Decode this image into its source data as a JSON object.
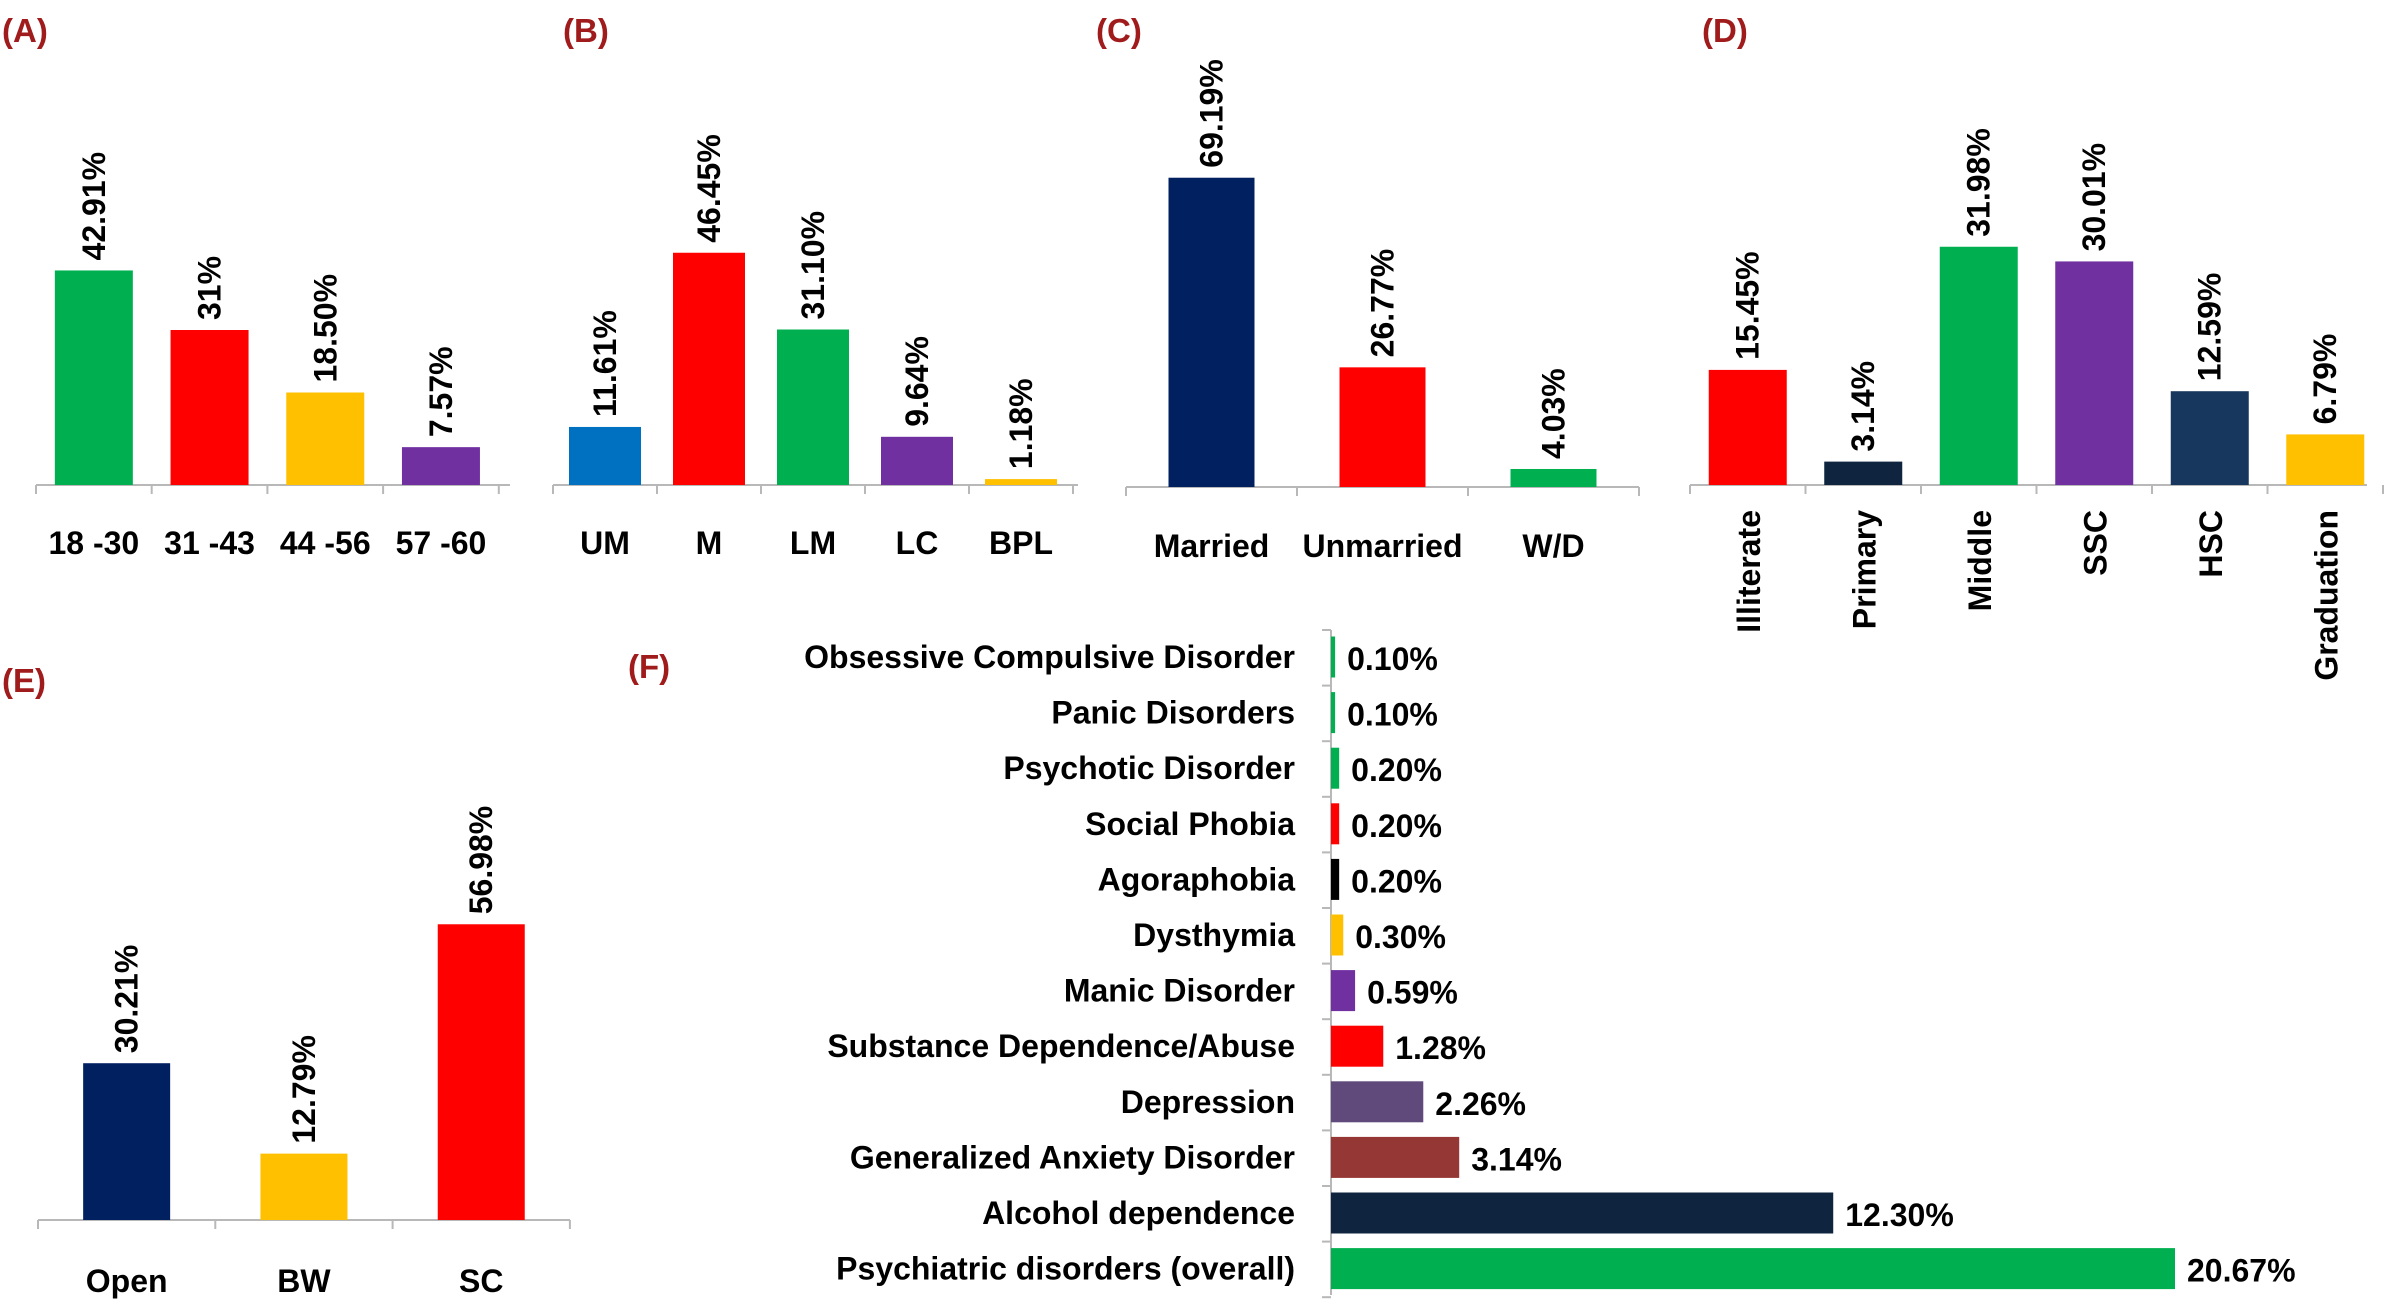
{
  "chart_data": [
    {
      "panel": "(A)",
      "type": "bar",
      "categories": [
        "18 -30",
        "31 -43",
        "44 -56",
        "57 -60"
      ],
      "values": [
        42.91,
        31,
        18.5,
        7.57
      ],
      "labels": [
        "42.91%",
        "31%",
        "18.50%",
        "7.57%"
      ],
      "colors": [
        "#00b050",
        "#ff0000",
        "#ffc000",
        "#7030a0"
      ],
      "ylim": [
        0,
        75
      ]
    },
    {
      "panel": "(B)",
      "type": "bar",
      "categories": [
        "UM",
        "M",
        "LM",
        "LC",
        "BPL"
      ],
      "values": [
        11.61,
        46.45,
        31.1,
        9.64,
        1.18
      ],
      "labels": [
        "11.61%",
        "46.45%",
        "31.10%",
        "9.64%",
        "1.18%"
      ],
      "colors": [
        "#0070c0",
        "#ff0000",
        "#00b050",
        "#7030a0",
        "#ffc000"
      ],
      "ylim": [
        0,
        75
      ]
    },
    {
      "panel": "(C)",
      "type": "bar",
      "categories": [
        "Married",
        "Unmarried",
        "W/D"
      ],
      "values": [
        69.19,
        26.77,
        4.03
      ],
      "labels": [
        "69.19%",
        "26.77%",
        "4.03%"
      ],
      "colors": [
        "#002060",
        "#ff0000",
        "#00b050"
      ],
      "ylim": [
        0,
        90
      ]
    },
    {
      "panel": "(D)",
      "type": "bar",
      "categories": [
        "Illiterate",
        "Primary",
        "Middle",
        "SSC",
        "HSC",
        "Graduation"
      ],
      "values": [
        15.45,
        3.14,
        31.98,
        30.01,
        12.59,
        6.79
      ],
      "labels": [
        "15.45%",
        "3.14%",
        "31.98%",
        "30.01%",
        "12.59%",
        "6.79%"
      ],
      "colors": [
        "#ff0000",
        "#0f243e",
        "#00b050",
        "#7030a0",
        "#17375e",
        "#ffc000"
      ],
      "ylim": [
        0,
        42
      ],
      "rotated_categories": true
    },
    {
      "panel": "(E)",
      "type": "bar",
      "categories": [
        "Open",
        "BW",
        "SC"
      ],
      "values": [
        30.21,
        12.79,
        56.98
      ],
      "labels": [
        "30.21%",
        "12.79%",
        "56.98%"
      ],
      "colors": [
        "#002060",
        "#ffc000",
        "#ff0000"
      ],
      "ylim": [
        0,
        89
      ]
    },
    {
      "panel": "(F)",
      "type": "bar",
      "orientation": "horizontal",
      "categories": [
        "Obsessive Compulsive Disorder",
        "Panic Disorders",
        "Psychotic Disorder",
        "Social Phobia",
        "Agoraphobia",
        "Dysthymia",
        "Manic Disorder",
        "Substance Dependence/Abuse",
        "Depression",
        "Generalized Anxiety Disorder",
        "Alcohol dependence",
        "Psychiatric disorders (overall)"
      ],
      "values": [
        0.1,
        0.1,
        0.2,
        0.2,
        0.2,
        0.3,
        0.59,
        1.28,
        2.26,
        3.14,
        12.3,
        20.67
      ],
      "labels": [
        "0.10%",
        "0.10%",
        "0.20%",
        "0.20%",
        "0.20%",
        "0.30%",
        "0.59%",
        "1.28%",
        "2.26%",
        "3.14%",
        "12.30%",
        "20.67%"
      ],
      "colors": [
        "#00b050",
        "#00b050",
        "#00b050",
        "#ff0000",
        "#000000",
        "#ffc000",
        "#7030a0",
        "#ff0000",
        "#604a7b",
        "#953735",
        "#0f243e",
        "#00b050"
      ],
      "xlim": [
        0,
        20.67
      ]
    }
  ]
}
